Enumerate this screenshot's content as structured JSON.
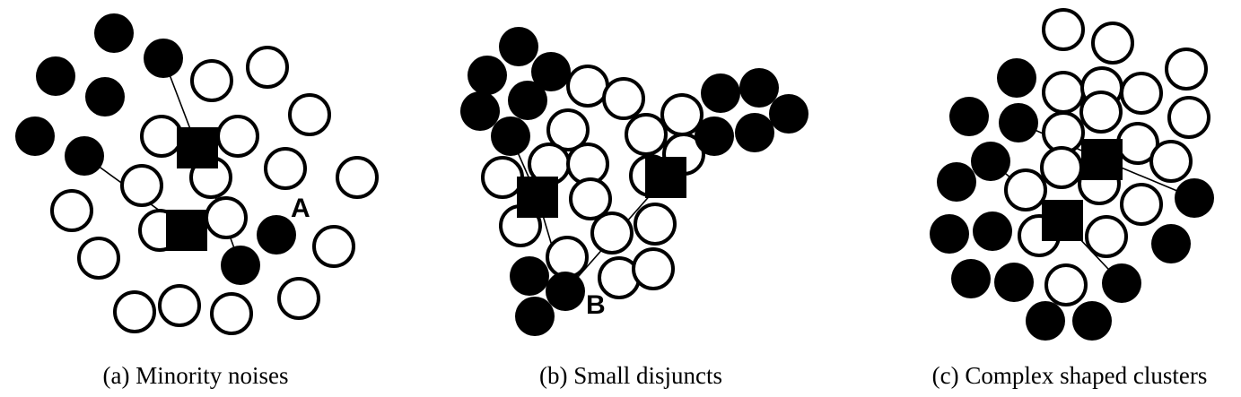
{
  "panels": [
    {
      "id": "a",
      "caption": "(a) Minority noises",
      "marker": "A",
      "majority": [
        [
          236,
          90
        ],
        [
          298,
          75
        ],
        [
          345,
          128
        ],
        [
          180,
          152
        ],
        [
          265,
          152
        ],
        [
          318,
          188
        ],
        [
          398,
          198
        ],
        [
          158,
          207
        ],
        [
          235,
          198
        ],
        [
          80,
          235
        ],
        [
          252,
          243
        ],
        [
          178,
          257
        ],
        [
          372,
          275
        ],
        [
          110,
          288
        ],
        [
          333,
          333
        ],
        [
          150,
          348
        ],
        [
          200,
          341
        ],
        [
          258,
          350
        ]
      ],
      "minority": [
        [
          127,
          37
        ],
        [
          62,
          85
        ],
        [
          182,
          65
        ],
        [
          117,
          108
        ],
        [
          39,
          152
        ],
        [
          94,
          174
        ],
        [
          308,
          262
        ],
        [
          268,
          296
        ]
      ],
      "centroids": [
        [
          220,
          165
        ],
        [
          208,
          257
        ]
      ],
      "links": [
        [
          [
            182,
            65
          ],
          [
            220,
            165
          ]
        ],
        [
          [
            220,
            165
          ],
          [
            268,
            296
          ]
        ],
        [
          [
            94,
            174
          ],
          [
            208,
            257
          ]
        ]
      ]
    },
    {
      "id": "b",
      "caption": "(b) Small disjuncts",
      "marker": "B",
      "majority": [
        [
          655,
          96
        ],
        [
          695,
          110
        ],
        [
          760,
          128
        ],
        [
          633,
          145
        ],
        [
          720,
          150
        ],
        [
          762,
          172
        ],
        [
          612,
          183
        ],
        [
          655,
          183
        ],
        [
          560,
          198
        ],
        [
          725,
          196
        ],
        [
          658,
          222
        ],
        [
          580,
          252
        ],
        [
          682,
          260
        ],
        [
          730,
          250
        ],
        [
          632,
          287
        ],
        [
          690,
          310
        ],
        [
          728,
          300
        ]
      ],
      "minority": [
        [
          578,
          52
        ],
        [
          614,
          80
        ],
        [
          543,
          84
        ],
        [
          588,
          112
        ],
        [
          535,
          124
        ],
        [
          803,
          104
        ],
        [
          846,
          98
        ],
        [
          879,
          127
        ],
        [
          796,
          152
        ],
        [
          841,
          148
        ],
        [
          569,
          152
        ],
        [
          590,
          308
        ],
        [
          630,
          325
        ],
        [
          596,
          353
        ]
      ],
      "centroids": [
        [
          599,
          220
        ],
        [
          742,
          198
        ]
      ],
      "links": [
        [
          [
            569,
            152
          ],
          [
            599,
            220
          ]
        ],
        [
          [
            599,
            220
          ],
          [
            630,
            325
          ]
        ],
        [
          [
            742,
            198
          ],
          [
            630,
            325
          ]
        ],
        [
          [
            742,
            198
          ],
          [
            796,
            152
          ]
        ]
      ]
    },
    {
      "id": "c",
      "caption": "(c) Complex shaped clusters",
      "majority": [
        [
          1185,
          33
        ],
        [
          1240,
          48
        ],
        [
          1322,
          77
        ],
        [
          1185,
          103
        ],
        [
          1228,
          98
        ],
        [
          1272,
          104
        ],
        [
          1325,
          131
        ],
        [
          1185,
          148
        ],
        [
          1227,
          125
        ],
        [
          1268,
          160
        ],
        [
          1305,
          180
        ],
        [
          1183,
          187
        ],
        [
          1225,
          205
        ],
        [
          1143,
          212
        ],
        [
          1272,
          228
        ],
        [
          1158,
          263
        ],
        [
          1233,
          264
        ],
        [
          1188,
          318
        ]
      ],
      "minority": [
        [
          1133,
          87
        ],
        [
          1080,
          130
        ],
        [
          1135,
          137
        ],
        [
          1104,
          180
        ],
        [
          1066,
          203
        ],
        [
          1331,
          221
        ],
        [
          1058,
          261
        ],
        [
          1106,
          258
        ],
        [
          1305,
          272
        ],
        [
          1082,
          311
        ],
        [
          1130,
          315
        ],
        [
          1250,
          316
        ],
        [
          1165,
          358
        ],
        [
          1217,
          358
        ]
      ],
      "centroids": [
        [
          1228,
          178
        ],
        [
          1184,
          246
        ]
      ],
      "links": [
        [
          [
            1135,
            137
          ],
          [
            1228,
            178
          ]
        ],
        [
          [
            1228,
            178
          ],
          [
            1331,
            221
          ]
        ],
        [
          [
            1104,
            180
          ],
          [
            1184,
            246
          ]
        ],
        [
          [
            1184,
            246
          ],
          [
            1250,
            316
          ]
        ]
      ]
    }
  ]
}
